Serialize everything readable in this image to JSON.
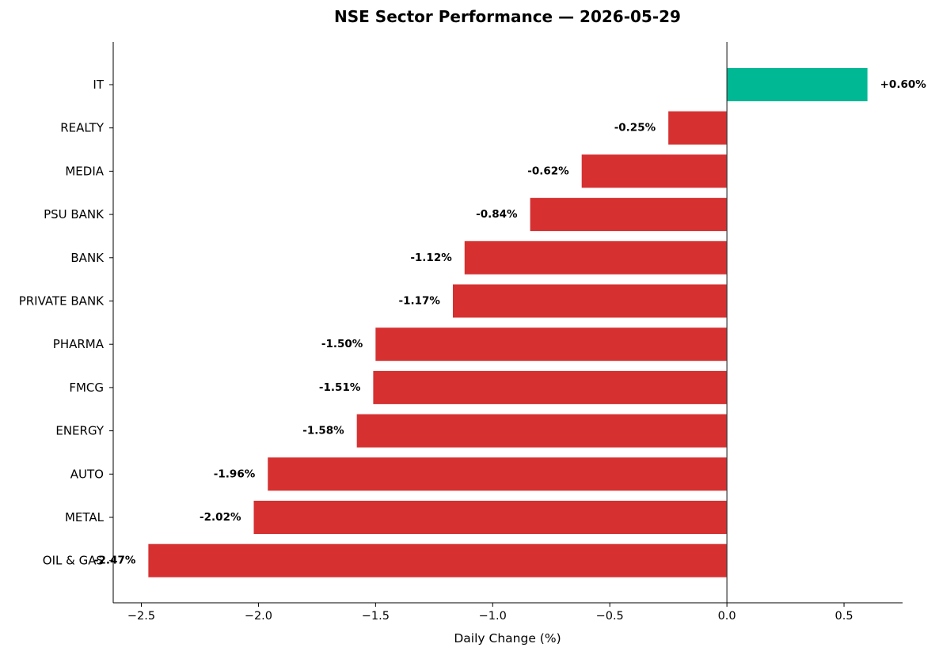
{
  "chart_data": {
    "type": "bar",
    "orientation": "horizontal",
    "title": "NSE Sector Performance — 2026-05-29",
    "xlabel": "Daily Change (%)",
    "ylabel": "",
    "xlim": [
      -2.62,
      0.75
    ],
    "xticks": [
      -2.5,
      -2.0,
      -1.5,
      -1.0,
      -0.5,
      0.0,
      0.5
    ],
    "xtick_labels": [
      "−2.5",
      "−2.0",
      "−1.5",
      "−1.0",
      "−0.5",
      "0.0",
      "0.5"
    ],
    "categories": [
      "IT",
      "REALTY",
      "MEDIA",
      "PSU BANK",
      "BANK",
      "PRIVATE BANK",
      "PHARMA",
      "FMCG",
      "ENERGY",
      "AUTO",
      "METAL",
      "OIL & GAS"
    ],
    "values": [
      0.6,
      -0.25,
      -0.62,
      -0.84,
      -1.12,
      -1.17,
      -1.5,
      -1.51,
      -1.58,
      -1.96,
      -2.02,
      -2.47
    ],
    "data_labels": [
      "+0.60%",
      "-0.25%",
      "-0.62%",
      "-0.84%",
      "-1.12%",
      "-1.17%",
      "-1.50%",
      "-1.51%",
      "-1.58%",
      "-1.96%",
      "-2.02%",
      "-2.47%"
    ],
    "colors": {
      "positive": "#00b894",
      "negative": "#d63031"
    },
    "grid": false,
    "zero_line": true
  }
}
